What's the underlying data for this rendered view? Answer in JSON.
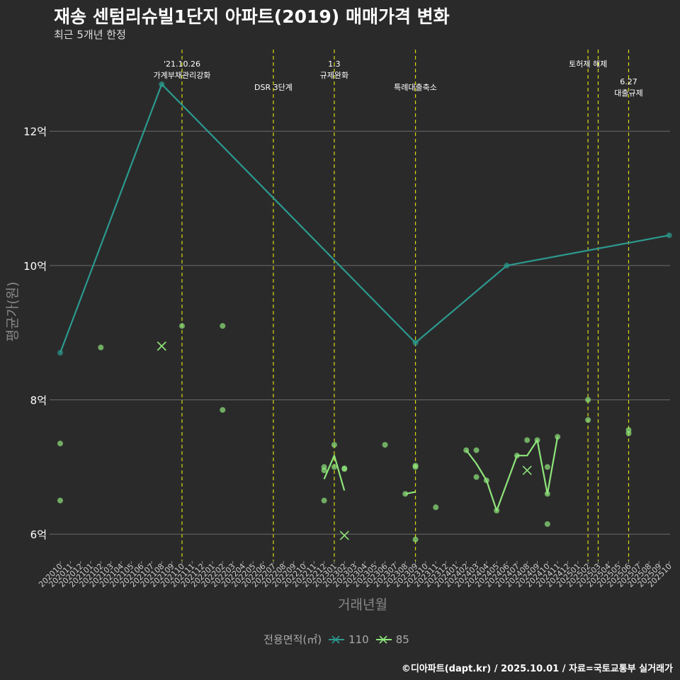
{
  "title": "재송 센텀리슈빌1단지 아파트(2019) 매매가격 변화",
  "subtitle": "최근 5개년 한정",
  "caption": "©디아파트(dapt.kr) / 2025.10.01 / 자료=국토교통부 실거래가",
  "legend": {
    "title": "전용면적(㎡)",
    "items": [
      {
        "label": "110",
        "color": "#2b9a8e"
      },
      {
        "label": "85",
        "color": "#8ee67a"
      }
    ]
  },
  "chart_data": {
    "type": "line",
    "title": "재송 센텀리슈빌1단지 아파트(2019) 매매가격 변화",
    "xlabel": "거래년월",
    "ylabel": "평균가(원)",
    "ylim": [
      5.6,
      13.3
    ],
    "yticks": [
      {
        "value": 6,
        "label": "6억"
      },
      {
        "value": 8,
        "label": "8억"
      },
      {
        "value": 10,
        "label": "10억"
      },
      {
        "value": 12,
        "label": "12억"
      }
    ],
    "categories": [
      "202010",
      "202011",
      "202012",
      "202101",
      "202102",
      "202103",
      "202104",
      "202105",
      "202106",
      "202107",
      "202108",
      "202109",
      "202110",
      "202111",
      "202112",
      "202201",
      "202202",
      "202203",
      "202204",
      "202205",
      "202206",
      "202207",
      "202208",
      "202209",
      "202210",
      "202211",
      "202212",
      "202301",
      "202302",
      "202303",
      "202304",
      "202305",
      "202306",
      "202307",
      "202308",
      "202309",
      "202310",
      "202311",
      "202312",
      "202401",
      "202402",
      "202403",
      "202404",
      "202405",
      "202406",
      "202407",
      "202408",
      "202409",
      "202410",
      "202411",
      "202412",
      "202501",
      "202502",
      "202503",
      "202504",
      "202505",
      "202506",
      "202507",
      "202508",
      "202509",
      "202510"
    ],
    "events": [
      {
        "x": 12,
        "label": "'21.10.26\n가계부채관리강화",
        "level": 0
      },
      {
        "x": 21,
        "label": "DSR 3단계",
        "level": 1
      },
      {
        "x": 27,
        "label": "1.3\n규제완화",
        "level": 0
      },
      {
        "x": 35,
        "label": "특례대출축소",
        "level": 1
      },
      {
        "x": 52,
        "label": "토허제 해제",
        "level": 0
      },
      {
        "x": 53,
        "label": "",
        "level": 0
      },
      {
        "x": 56,
        "label": "6.27\n대출규제",
        "level": 1
      }
    ],
    "series": [
      {
        "name": "110",
        "color": "#2b9a8e",
        "line": [
          [
            0,
            8.7
          ],
          [
            10,
            12.7
          ],
          [
            35,
            8.85
          ],
          [
            44,
            10.0
          ],
          [
            60,
            10.45
          ]
        ],
        "points": [
          [
            0,
            8.7
          ],
          [
            10,
            12.7
          ],
          [
            35,
            8.85
          ],
          [
            44,
            10.0
          ],
          [
            60,
            10.45
          ]
        ],
        "crosses": []
      },
      {
        "name": "85",
        "color": "#8ee67a",
        "line_segments": [
          [
            [
              26,
              6.82
            ],
            [
              27,
              7.17
            ],
            [
              28,
              6.65
            ]
          ],
          [
            [
              34,
              6.6
            ],
            [
              35,
              6.63
            ]
          ],
          [
            [
              40,
              7.25
            ],
            [
              41,
              7.05
            ],
            [
              42,
              6.8
            ],
            [
              43,
              6.35
            ],
            [
              45,
              7.17
            ],
            [
              46,
              7.17
            ],
            [
              47,
              7.4
            ],
            [
              48,
              6.6
            ],
            [
              49,
              7.45
            ]
          ]
        ],
        "points": [
          [
            0,
            7.35
          ],
          [
            0,
            6.5
          ],
          [
            4,
            8.78
          ],
          [
            12,
            9.1
          ],
          [
            16,
            9.1
          ],
          [
            16,
            7.85
          ],
          [
            26,
            7.0
          ],
          [
            26,
            6.95
          ],
          [
            26,
            6.5
          ],
          [
            27,
            7.33
          ],
          [
            27,
            7.0
          ],
          [
            28,
            6.98
          ],
          [
            28,
            6.97
          ],
          [
            32,
            7.33
          ],
          [
            34,
            6.6
          ],
          [
            35,
            7.02
          ],
          [
            35,
            7.0
          ],
          [
            35,
            5.92
          ],
          [
            37,
            6.4
          ],
          [
            40,
            7.25
          ],
          [
            41,
            7.25
          ],
          [
            41,
            6.85
          ],
          [
            42,
            6.8
          ],
          [
            43,
            6.35
          ],
          [
            45,
            7.17
          ],
          [
            46,
            7.4
          ],
          [
            47,
            7.4
          ],
          [
            48,
            7.0
          ],
          [
            48,
            6.6
          ],
          [
            48,
            6.15
          ],
          [
            49,
            7.45
          ],
          [
            52,
            8.0
          ],
          [
            52,
            7.7
          ],
          [
            56,
            7.55
          ],
          [
            56,
            7.5
          ]
        ],
        "crosses": [
          [
            10,
            8.8
          ],
          [
            28,
            5.98
          ],
          [
            46,
            6.95
          ]
        ]
      }
    ]
  }
}
